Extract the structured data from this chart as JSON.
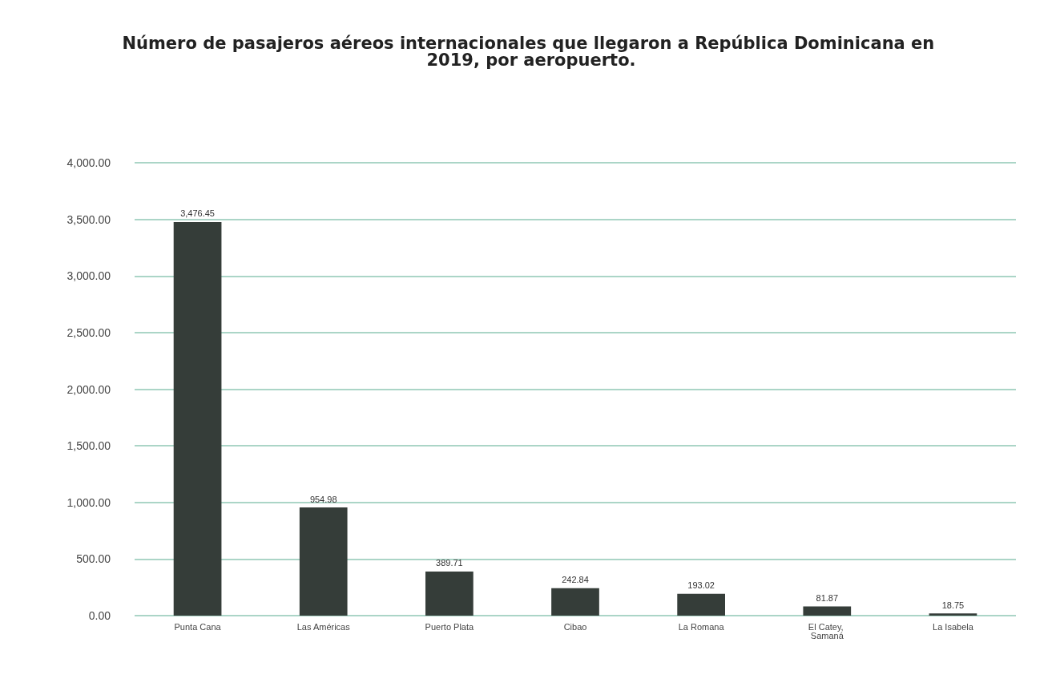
{
  "chart_data": {
    "type": "bar",
    "title": "Número de pasajeros aéreos internacionales que llegaron a República Dominicana en 2019, por aeropuerto.",
    "categories": [
      "Punta Cana",
      "Las Américas",
      "Puerto Plata",
      "Cibao",
      "La Romana",
      "El Catey, Samaná",
      "La Isabela"
    ],
    "values": [
      3476.45,
      954.98,
      389.71,
      242.84,
      193.02,
      81.87,
      18.75
    ],
    "value_labels": [
      "3,476.45",
      "954.98",
      "389.71",
      "242.84",
      "193.02",
      "81.87",
      "18.75"
    ],
    "color": "#353d39",
    "ylim": [
      0,
      4000
    ],
    "yticks": [
      {
        "value": 0,
        "label": "0.00"
      },
      {
        "value": 500,
        "label": "500.00"
      },
      {
        "value": 1000,
        "label": "1,000.00"
      },
      {
        "value": 1500,
        "label": "1,500.00"
      },
      {
        "value": 2000,
        "label": "2,000.00"
      },
      {
        "value": 2500,
        "label": "2,500.00"
      },
      {
        "value": 3000,
        "label": "3,000.00"
      },
      {
        "value": 3500,
        "label": "3,500.00"
      },
      {
        "value": 4000,
        "label": "4,000.00"
      }
    ],
    "grid": "y"
  }
}
